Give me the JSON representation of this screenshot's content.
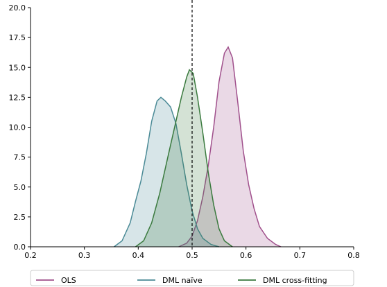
{
  "chart_data": {
    "type": "area",
    "title": "",
    "xlabel": "",
    "ylabel": "",
    "xlim": [
      0.2,
      0.8
    ],
    "ylim": [
      0.0,
      20.0
    ],
    "x_ticks": [
      "0.2",
      "0.3",
      "0.4",
      "0.5",
      "0.6",
      "0.7",
      "0.8"
    ],
    "y_ticks": [
      "0.0",
      "2.5",
      "5.0",
      "7.5",
      "10.0",
      "12.5",
      "15.0",
      "17.5",
      "20.0"
    ],
    "grid": false,
    "reference_line": {
      "x": 0.5,
      "style": "dashed",
      "color": "#000000"
    },
    "legend": {
      "placement": "bottom"
    },
    "series": [
      {
        "name": "OLS",
        "color": "#a0508c",
        "points": [
          [
            0.475,
            0
          ],
          [
            0.49,
            0.3
          ],
          [
            0.5,
            0.9
          ],
          [
            0.51,
            2.2
          ],
          [
            0.52,
            4.2
          ],
          [
            0.53,
            6.8
          ],
          [
            0.54,
            10.0
          ],
          [
            0.55,
            13.8
          ],
          [
            0.56,
            16.2
          ],
          [
            0.567,
            16.7
          ],
          [
            0.575,
            15.8
          ],
          [
            0.585,
            12.0
          ],
          [
            0.595,
            8.0
          ],
          [
            0.605,
            5.2
          ],
          [
            0.615,
            3.2
          ],
          [
            0.625,
            1.7
          ],
          [
            0.64,
            0.7
          ],
          [
            0.655,
            0.2
          ],
          [
            0.665,
            0
          ]
        ]
      },
      {
        "name": "DML naïve",
        "color": "#4a8a96",
        "points": [
          [
            0.355,
            0
          ],
          [
            0.37,
            0.5
          ],
          [
            0.385,
            2.0
          ],
          [
            0.395,
            3.8
          ],
          [
            0.405,
            5.5
          ],
          [
            0.415,
            7.8
          ],
          [
            0.425,
            10.5
          ],
          [
            0.435,
            12.2
          ],
          [
            0.442,
            12.5
          ],
          [
            0.45,
            12.2
          ],
          [
            0.46,
            11.7
          ],
          [
            0.47,
            10.3
          ],
          [
            0.48,
            7.8
          ],
          [
            0.49,
            5.2
          ],
          [
            0.5,
            3.0
          ],
          [
            0.51,
            1.5
          ],
          [
            0.52,
            0.7
          ],
          [
            0.535,
            0.2
          ],
          [
            0.55,
            0
          ]
        ]
      },
      {
        "name": "DML cross-fitting",
        "color": "#3a7a3e",
        "points": [
          [
            0.395,
            0
          ],
          [
            0.41,
            0.5
          ],
          [
            0.425,
            2.0
          ],
          [
            0.44,
            4.5
          ],
          [
            0.455,
            7.5
          ],
          [
            0.47,
            10.5
          ],
          [
            0.48,
            12.5
          ],
          [
            0.49,
            14.2
          ],
          [
            0.495,
            14.8
          ],
          [
            0.502,
            14.5
          ],
          [
            0.51,
            12.5
          ],
          [
            0.52,
            9.5
          ],
          [
            0.53,
            6.2
          ],
          [
            0.54,
            3.5
          ],
          [
            0.55,
            1.5
          ],
          [
            0.56,
            0.5
          ],
          [
            0.575,
            0
          ]
        ]
      }
    ]
  }
}
